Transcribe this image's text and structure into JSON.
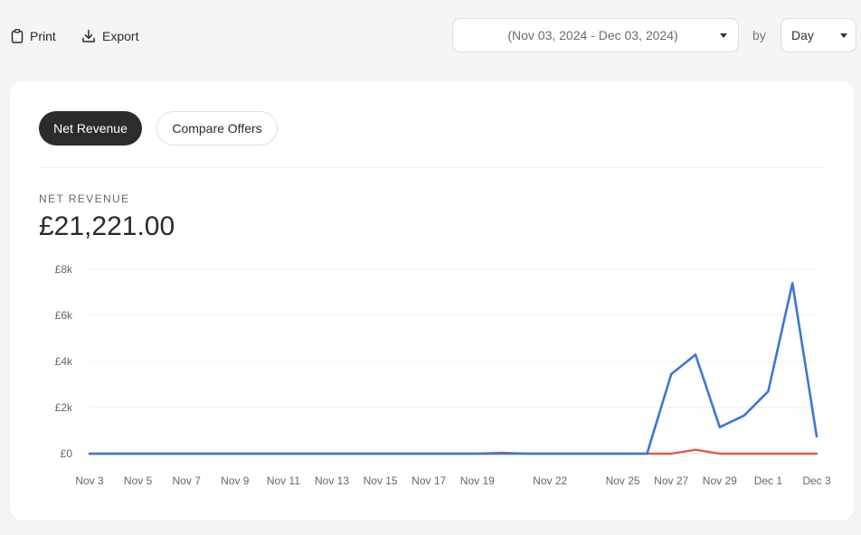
{
  "toolbar": {
    "print_label": "Print",
    "export_label": "Export",
    "date_range": "(Nov 03, 2024 - Dec 03, 2024)",
    "by_label": "by",
    "granularity": "Day"
  },
  "tabs": [
    {
      "label": "Net Revenue",
      "active": true
    },
    {
      "label": "Compare Offers",
      "active": false
    }
  ],
  "metric": {
    "label": "NET REVENUE",
    "value": "£21,221.00"
  },
  "colors": {
    "primary_series": "#3a77d6",
    "secondary_series": "#dd5a4c",
    "active_tab": "#2d2c2a"
  },
  "icons": [
    "clipboard-icon",
    "download-icon",
    "chevron-down-icon"
  ],
  "chart_data": {
    "type": "line",
    "x": [
      "Nov 3",
      "Nov 4",
      "Nov 5",
      "Nov 6",
      "Nov 7",
      "Nov 8",
      "Nov 9",
      "Nov 10",
      "Nov 11",
      "Nov 12",
      "Nov 13",
      "Nov 14",
      "Nov 15",
      "Nov 16",
      "Nov 17",
      "Nov 18",
      "Nov 19",
      "Nov 20",
      "Nov 21",
      "Nov 22",
      "Nov 23",
      "Nov 24",
      "Nov 25",
      "Nov 26",
      "Nov 27",
      "Nov 28",
      "Nov 29",
      "Nov 30",
      "Dec 1",
      "Dec 2",
      "Dec 3"
    ],
    "x_tick_labels": [
      "Nov 3",
      "Nov 5",
      "Nov 7",
      "Nov 9",
      "Nov 11",
      "Nov 13",
      "Nov 15",
      "Nov 17",
      "Nov 19",
      "Nov 22",
      "Nov 25",
      "Nov 27",
      "Nov 29",
      "Dec 1",
      "Dec 3"
    ],
    "y_ticks": [
      {
        "value": 0,
        "label": "£0"
      },
      {
        "value": 2000,
        "label": "£2k"
      },
      {
        "value": 4000,
        "label": "£4k"
      },
      {
        "value": 6000,
        "label": "£6k"
      },
      {
        "value": 8000,
        "label": "£8k"
      }
    ],
    "ylim": [
      0,
      8000
    ],
    "grid": true,
    "series": [
      {
        "values": [
          0,
          0,
          0,
          0,
          0,
          0,
          0,
          0,
          0,
          0,
          0,
          0,
          0,
          0,
          0,
          0,
          0,
          0,
          0,
          0,
          0,
          0,
          0,
          0,
          3450,
          4300,
          1150,
          1650,
          2700,
          7400,
          750
        ]
      },
      {
        "values": [
          0,
          0,
          0,
          0,
          0,
          0,
          0,
          0,
          0,
          0,
          0,
          0,
          0,
          0,
          0,
          0,
          0,
          40,
          0,
          0,
          0,
          0,
          0,
          0,
          0,
          170,
          0,
          0,
          0,
          0,
          0
        ]
      }
    ]
  }
}
